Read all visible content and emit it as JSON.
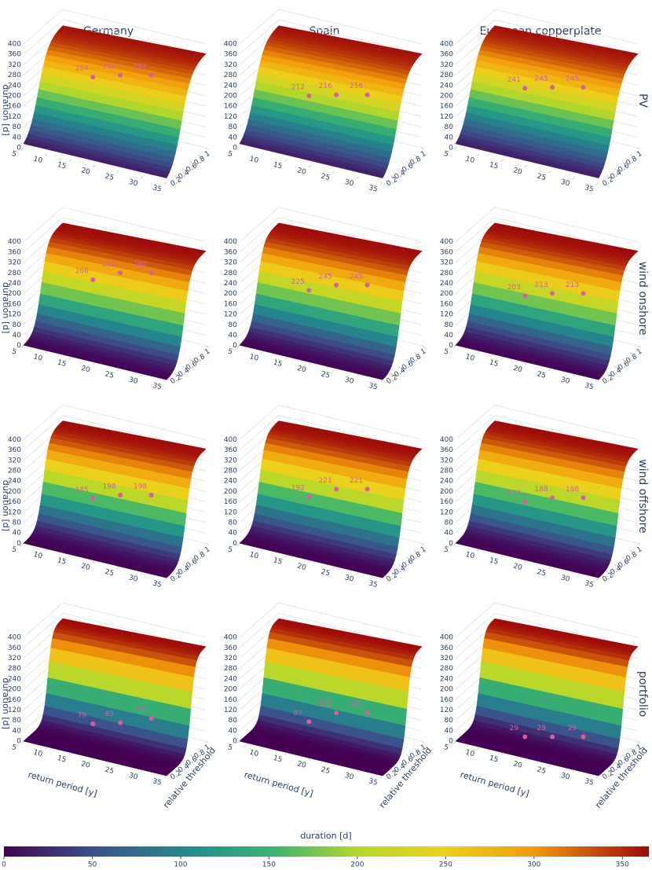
{
  "column_titles": [
    "Germany",
    "Spain",
    "European copperplate"
  ],
  "row_titles": [
    "PV",
    "wind onshore",
    "wind offshore",
    "portfolio"
  ],
  "colorbar": {
    "title": "duration [d]",
    "range": [
      0,
      365
    ],
    "ticks": [
      0,
      50,
      100,
      150,
      200,
      250,
      300,
      350
    ],
    "colorscale": [
      [
        0,
        "#440154"
      ],
      [
        0.14,
        "#3b528b"
      ],
      [
        0.3,
        "#21908d"
      ],
      [
        0.42,
        "#3cb46e"
      ],
      [
        0.55,
        "#b5d82b"
      ],
      [
        0.68,
        "#ecd11c"
      ],
      [
        0.82,
        "#f39a0b"
      ],
      [
        1,
        "#9e0a0a"
      ]
    ]
  },
  "chart_data": [
    {
      "type": "surface",
      "zlabel": "duration [d]",
      "zlim": [
        0,
        400
      ],
      "zticks": [
        0,
        40,
        80,
        120,
        160,
        200,
        240,
        280,
        320,
        360,
        400
      ],
      "xlim": [
        5,
        35
      ],
      "xticks": [
        5,
        10,
        15,
        20,
        25,
        30,
        35
      ],
      "ylim": [
        0,
        1
      ],
      "yticks": [
        0.2,
        0.4,
        0.6,
        0.8,
        1
      ],
      "point_color": "#d4619c",
      "points": [
        284,
        292,
        292
      ]
    },
    {
      "type": "surface",
      "zlim": [
        0,
        400
      ],
      "zticks": [
        0,
        40,
        80,
        120,
        160,
        200,
        240,
        280,
        320,
        360,
        400
      ],
      "xlim": [
        5,
        35
      ],
      "xticks": [
        5,
        10,
        15,
        20,
        25,
        30,
        35
      ],
      "ylim": [
        0,
        1
      ],
      "yticks": [
        0.2,
        0.4,
        0.6,
        0.8,
        1
      ],
      "point_color": "#d4619c",
      "points": [
        212,
        216,
        216
      ]
    },
    {
      "type": "surface",
      "zlim": [
        0,
        400
      ],
      "zticks": [
        0,
        40,
        80,
        120,
        160,
        200,
        240,
        280,
        320,
        360,
        400
      ],
      "xlim": [
        5,
        35
      ],
      "xticks": [
        5,
        10,
        15,
        20,
        25,
        30,
        35
      ],
      "ylim": [
        0,
        1
      ],
      "yticks": [
        0.2,
        0.4,
        0.6,
        0.8,
        1
      ],
      "point_color": "#d4619c",
      "points": [
        241,
        245,
        245
      ]
    },
    {
      "type": "surface",
      "zlabel": "duration [d]",
      "zlim": [
        0,
        400
      ],
      "zticks": [
        0,
        40,
        80,
        120,
        160,
        200,
        240,
        280,
        320,
        360,
        400
      ],
      "xlim": [
        5,
        35
      ],
      "xticks": [
        5,
        10,
        15,
        20,
        25,
        30,
        35
      ],
      "ylim": [
        0,
        1
      ],
      "yticks": [
        0.2,
        0.4,
        0.6,
        0.8,
        1
      ],
      "point_color": "#d4619c",
      "points": [
        266,
        292,
        292
      ]
    },
    {
      "type": "surface",
      "zlim": [
        0,
        400
      ],
      "zticks": [
        0,
        40,
        80,
        120,
        160,
        200,
        240,
        280,
        320,
        360,
        400
      ],
      "xlim": [
        5,
        35
      ],
      "xticks": [
        5,
        10,
        15,
        20,
        25,
        30,
        35
      ],
      "ylim": [
        0,
        1
      ],
      "yticks": [
        0.2,
        0.4,
        0.6,
        0.8,
        1
      ],
      "point_color": "#d4619c",
      "points": [
        225,
        245,
        245
      ]
    },
    {
      "type": "surface",
      "zlim": [
        0,
        400
      ],
      "zticks": [
        0,
        40,
        80,
        120,
        160,
        200,
        240,
        280,
        320,
        360,
        400
      ],
      "xlim": [
        5,
        35
      ],
      "xticks": [
        5,
        10,
        15,
        20,
        25,
        30,
        35
      ],
      "ylim": [
        0,
        1
      ],
      "yticks": [
        0.2,
        0.4,
        0.6,
        0.8,
        1
      ],
      "point_color": "#d4619c",
      "points": [
        203,
        213,
        213
      ]
    },
    {
      "type": "surface",
      "zlabel": "duration [d]",
      "zlim": [
        0,
        400
      ],
      "zticks": [
        0,
        40,
        80,
        120,
        160,
        200,
        240,
        280,
        320,
        360,
        400
      ],
      "xlim": [
        5,
        35
      ],
      "xticks": [
        5,
        10,
        15,
        20,
        25,
        30,
        35
      ],
      "ylim": [
        0,
        1
      ],
      "yticks": [
        0.2,
        0.4,
        0.6,
        0.8,
        1
      ],
      "point_color": "#d4619c",
      "points": [
        185,
        198,
        198
      ]
    },
    {
      "type": "surface",
      "zlim": [
        0,
        400
      ],
      "zticks": [
        0,
        40,
        80,
        120,
        160,
        200,
        240,
        280,
        320,
        360,
        400
      ],
      "xlim": [
        5,
        35
      ],
      "xticks": [
        5,
        10,
        15,
        20,
        25,
        30,
        35
      ],
      "ylim": [
        0,
        1
      ],
      "yticks": [
        0.2,
        0.4,
        0.6,
        0.8,
        1
      ],
      "point_color": "#d4619c",
      "points": [
        192,
        221,
        221
      ]
    },
    {
      "type": "surface",
      "zlim": [
        0,
        400
      ],
      "zticks": [
        0,
        40,
        80,
        120,
        160,
        200,
        240,
        280,
        320,
        360,
        400
      ],
      "xlim": [
        5,
        35
      ],
      "xticks": [
        5,
        10,
        15,
        20,
        25,
        30,
        35
      ],
      "ylim": [
        0,
        1
      ],
      "yticks": [
        0.2,
        0.4,
        0.6,
        0.8,
        1
      ],
      "point_color": "#d4619c",
      "points": [
        172,
        188,
        188
      ]
    },
    {
      "type": "surface",
      "zlabel": "duration [d]",
      "xlabel": "return period [y]",
      "ylabel": "relative threshold",
      "zlim": [
        0,
        400
      ],
      "zticks": [
        0,
        40,
        80,
        120,
        160,
        200,
        240,
        280,
        320,
        360,
        400
      ],
      "xlim": [
        5,
        35
      ],
      "xticks": [
        5,
        10,
        15,
        20,
        25,
        30,
        35
      ],
      "ylim": [
        0,
        1
      ],
      "yticks": [
        0.2,
        0.4,
        0.6,
        0.8,
        1
      ],
      "point_color": "#d4619c",
      "points": [
        79,
        83,
        99
      ]
    },
    {
      "type": "surface",
      "xlabel": "return period [y]",
      "ylabel": "relative threshold",
      "zlim": [
        0,
        400
      ],
      "zticks": [
        0,
        40,
        80,
        120,
        160,
        200,
        240,
        280,
        320,
        360,
        400
      ],
      "xlim": [
        5,
        35
      ],
      "xticks": [
        5,
        10,
        15,
        20,
        25,
        30,
        35
      ],
      "ylim": [
        0,
        1
      ],
      "yticks": [
        0.2,
        0.4,
        0.6,
        0.8,
        1
      ],
      "point_color": "#d4619c",
      "points": [
        87,
        121,
        121
      ]
    },
    {
      "type": "surface",
      "xlabel": "return period [y]",
      "ylabel": "relative threshold",
      "zlim": [
        0,
        400
      ],
      "zticks": [
        0,
        40,
        80,
        120,
        160,
        200,
        240,
        280,
        320,
        360,
        400
      ],
      "xlim": [
        5,
        35
      ],
      "xticks": [
        5,
        10,
        15,
        20,
        25,
        30,
        35
      ],
      "ylim": [
        0,
        1
      ],
      "yticks": [
        0.2,
        0.4,
        0.6,
        0.8,
        1
      ],
      "point_color": "#d4619c",
      "points": [
        29,
        29,
        29
      ]
    }
  ]
}
